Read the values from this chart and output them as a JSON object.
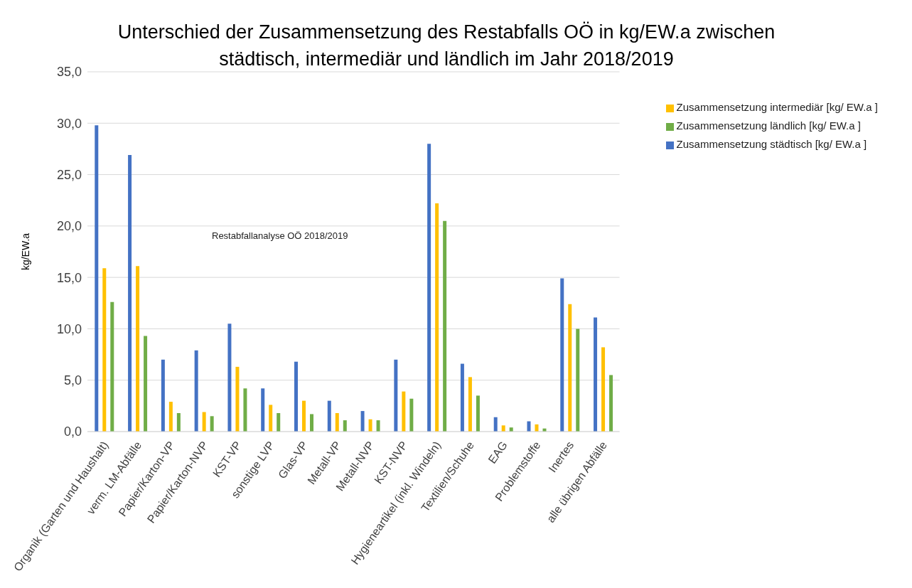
{
  "chart_data": {
    "type": "bar",
    "title": "Unterschied der Zusammensetzung des Restabfalls OÖ in kg/EW.a zwischen städtisch, intermediär und ländlich im Jahr 2018/2019",
    "ylabel": "kg/EW.a",
    "annotations": [
      "Restabfallanalyse OÖ 2018/2019"
    ],
    "categories": [
      "Organik (Garten und Haushalt)",
      "verm. LM-Abfälle",
      "Papier/Karton-VP",
      "Papier/Karton-NVP",
      "KST-VP",
      "sonstige LVP",
      "Glas-VP",
      "Metall-VP",
      "Metall-NVP",
      "KST-NVP",
      "Hygieneartikel (inkl. Windeln)",
      "Textilien/Schuhe",
      "EAG",
      "Problemstoffe",
      "Inertes",
      "alle übrigen Abfälle"
    ],
    "series": [
      {
        "name": "Zusammensetzung städtisch [kg/ EW.a ]",
        "color": "#4472c4",
        "values": [
          29.8,
          26.9,
          7.0,
          7.9,
          10.5,
          4.2,
          6.8,
          3.0,
          2.0,
          7.0,
          28.0,
          6.6,
          1.4,
          1.0,
          14.9,
          11.1
        ]
      },
      {
        "name": "Zusammensetzung intermediär [kg/ EW.a ]",
        "color": "#ffc000",
        "values": [
          15.9,
          16.1,
          2.9,
          1.9,
          6.3,
          2.6,
          3.0,
          1.8,
          1.2,
          3.9,
          22.2,
          5.3,
          0.6,
          0.7,
          12.4,
          8.2
        ]
      },
      {
        "name": "Zusammensetzung ländlich [kg/ EW.a ]",
        "color": "#70ad47",
        "values": [
          12.6,
          9.3,
          1.8,
          1.5,
          4.2,
          1.8,
          1.7,
          1.1,
          1.1,
          3.2,
          20.5,
          3.5,
          0.4,
          0.3,
          10.0,
          5.5
        ]
      }
    ],
    "ylim": [
      0,
      35
    ],
    "yticks": [
      {
        "value": 0,
        "label": "0,0"
      },
      {
        "value": 5,
        "label": "5,0"
      },
      {
        "value": 10,
        "label": "10,0"
      },
      {
        "value": 15,
        "label": "15,0"
      },
      {
        "value": 20,
        "label": "20,0"
      },
      {
        "value": 25,
        "label": "25,0"
      },
      {
        "value": 30,
        "label": "30,0"
      },
      {
        "value": 35,
        "label": "35,0"
      }
    ],
    "grid": "y",
    "legend": "top right"
  }
}
